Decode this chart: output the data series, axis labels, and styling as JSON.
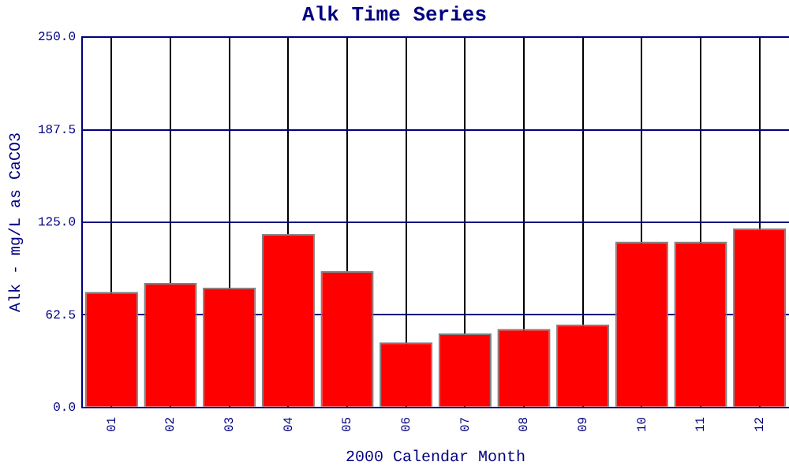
{
  "chart_data": {
    "type": "bar",
    "title": "Alk Time Series",
    "xlabel": "2000 Calendar Month",
    "ylabel": "Alk - mg/L as CaCO3",
    "categories": [
      "01",
      "02",
      "03",
      "04",
      "05",
      "06",
      "07",
      "08",
      "09",
      "10",
      "11",
      "12"
    ],
    "values": [
      78,
      84,
      81,
      117,
      92,
      44,
      50,
      53,
      56,
      112,
      112,
      121
    ],
    "color": "#ff0000",
    "ylim": [
      0,
      250
    ],
    "yticks": [
      {
        "value": 0,
        "label": "0.0"
      },
      62.5,
      {
        "value": 125,
        "label": "125.0"
      },
      187.5,
      {
        "value": 250,
        "label": "250.0"
      }
    ],
    "grid": true,
    "legend": false
  }
}
